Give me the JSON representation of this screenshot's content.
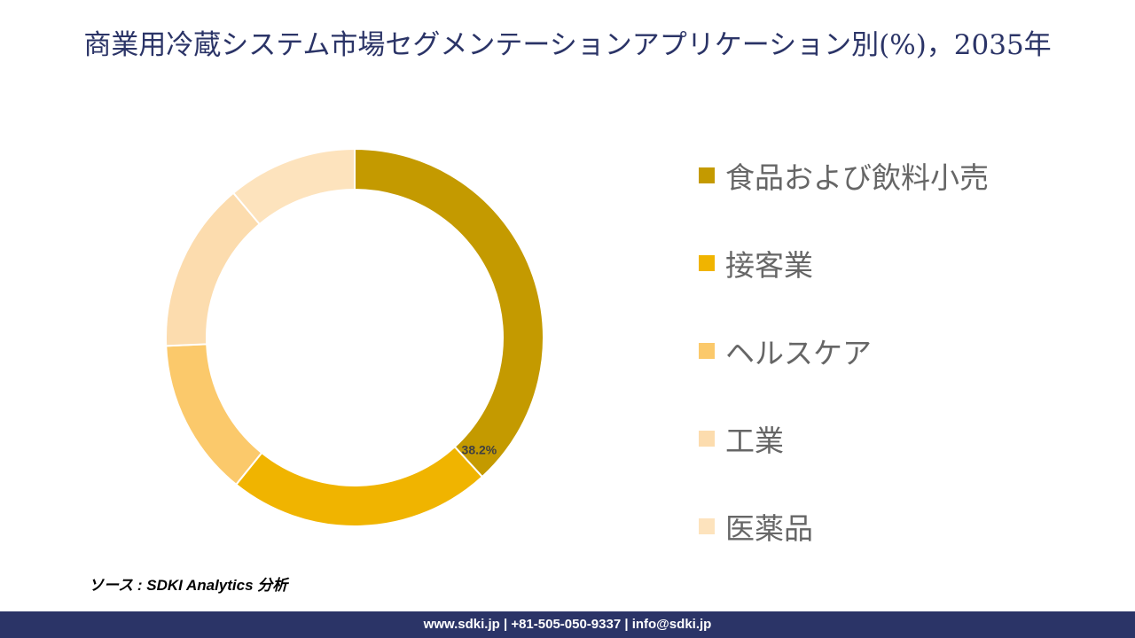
{
  "chart_data": {
    "type": "donut",
    "title": "商業用冷蔵システム市場セグメンテーションアプリケーション別(%)，2035年",
    "categories": [
      "食品および飲料小売",
      "接客業",
      "ヘルスケア",
      "工業",
      "医薬品"
    ],
    "values": [
      38.2,
      22.6,
      13.5,
      14.6,
      11.1
    ],
    "value_labels": [
      "38.2%",
      null,
      null,
      null,
      null
    ],
    "colors": [
      "#c49a00",
      "#f0b400",
      "#fbc96b",
      "#fcdcae",
      "#fde3bd"
    ],
    "source": "ソース : SDKI Analytics 分析",
    "footer": "www.sdki.jp | +81-505-050-9337 | info@sdki.jp"
  }
}
